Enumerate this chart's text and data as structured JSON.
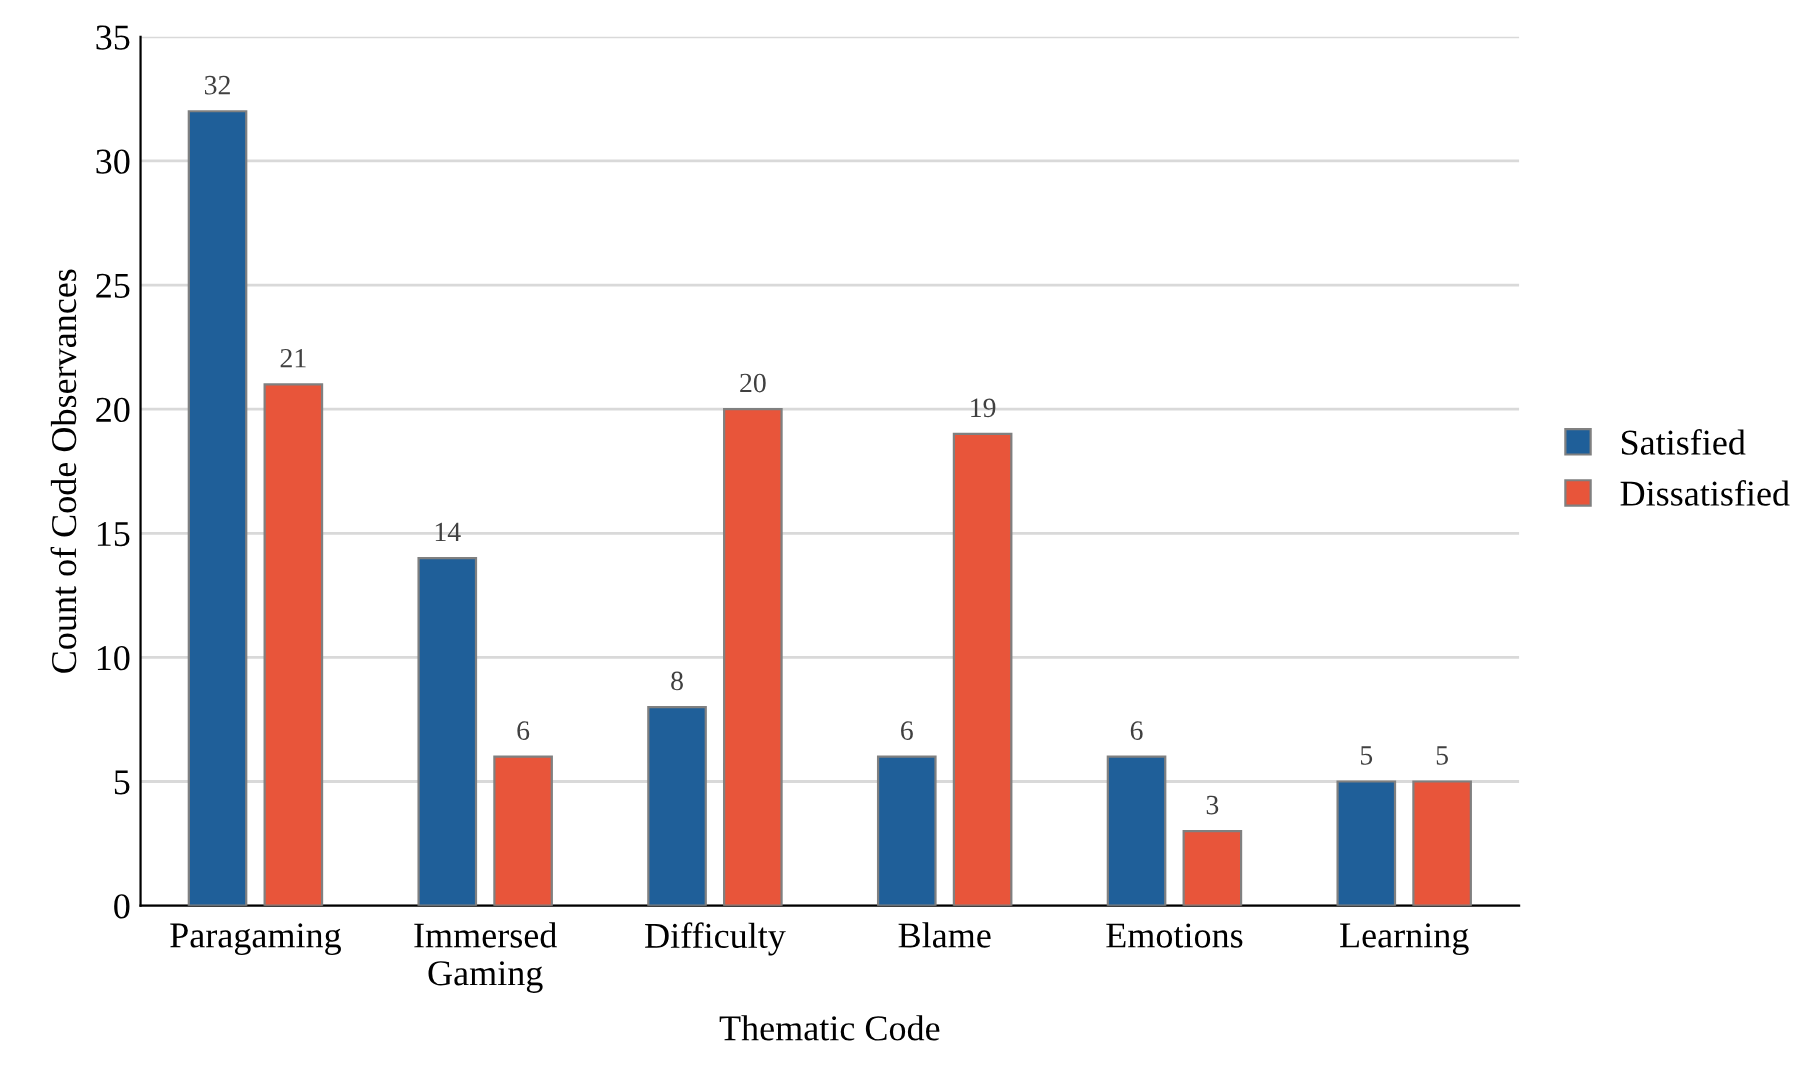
{
  "chart_data": {
    "type": "bar",
    "xlabel": "Thematic Code",
    "ylabel": "Count of Code Observances",
    "categories": [
      "Paragaming",
      "Immersed\nGaming",
      "Difficulty",
      "Blame",
      "Emotions",
      "Learning"
    ],
    "series": [
      {
        "name": "Satisfied",
        "color": "#1f5f99",
        "values": [
          32,
          14,
          8,
          6,
          6,
          5
        ]
      },
      {
        "name": "Dissatisfied",
        "color": "#e8553a",
        "values": [
          21,
          6,
          20,
          19,
          3,
          5
        ]
      }
    ],
    "ylim": [
      0,
      35
    ],
    "yticks": [
      0,
      5,
      10,
      15,
      20,
      25,
      30,
      35
    ],
    "grid": "y",
    "legend": "right",
    "data_labels": true
  }
}
